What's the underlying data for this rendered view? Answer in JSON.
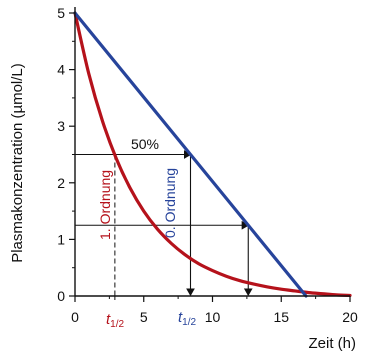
{
  "chart_data": {
    "type": "line",
    "xlabel": "Zeit (h)",
    "ylabel": "Plasmakonzentration (µmol/L)",
    "xlim": [
      0,
      20
    ],
    "ylim": [
      0,
      5
    ],
    "x_ticks": [
      "0",
      "5",
      "10",
      "15",
      "20"
    ],
    "y_ticks": [
      "0",
      "1",
      "2",
      "3",
      "4",
      "5"
    ],
    "grid": false,
    "colors": {
      "first_order": "#b5121b",
      "zero_order": "#27449b",
      "helper": "#111111"
    },
    "series": [
      {
        "name": "1. Ordnung",
        "color": "#b5121b",
        "x": [
          0,
          1,
          2,
          3,
          4,
          5,
          6,
          7,
          8,
          9,
          10,
          11,
          12,
          13,
          14,
          15,
          16,
          17,
          18,
          19,
          20
        ],
        "y": [
          5.0,
          3.93,
          3.09,
          2.43,
          1.91,
          1.5,
          1.18,
          0.93,
          0.73,
          0.57,
          0.45,
          0.35,
          0.27,
          0.21,
          0.16,
          0.12,
          0.09,
          0.06,
          0.04,
          0.02,
          0.01
        ]
      },
      {
        "name": "0. Ordnung",
        "color": "#27449b",
        "x": [
          0,
          8.4,
          16.8
        ],
        "y": [
          5.0,
          2.5,
          0.0
        ]
      }
    ],
    "annotations": {
      "percent_label": "50%",
      "t_half_base": "t",
      "t_half_sub": "1/2",
      "t_half_first_order_x": 2.9,
      "t_half_zero_order_x": 8.4,
      "zero_order_second_drop_x": 12.6,
      "first_order_second_drop_x": 8.4,
      "first_order_third_drop_x": 12.6,
      "level_50": 2.5,
      "level_25": 1.25
    }
  }
}
